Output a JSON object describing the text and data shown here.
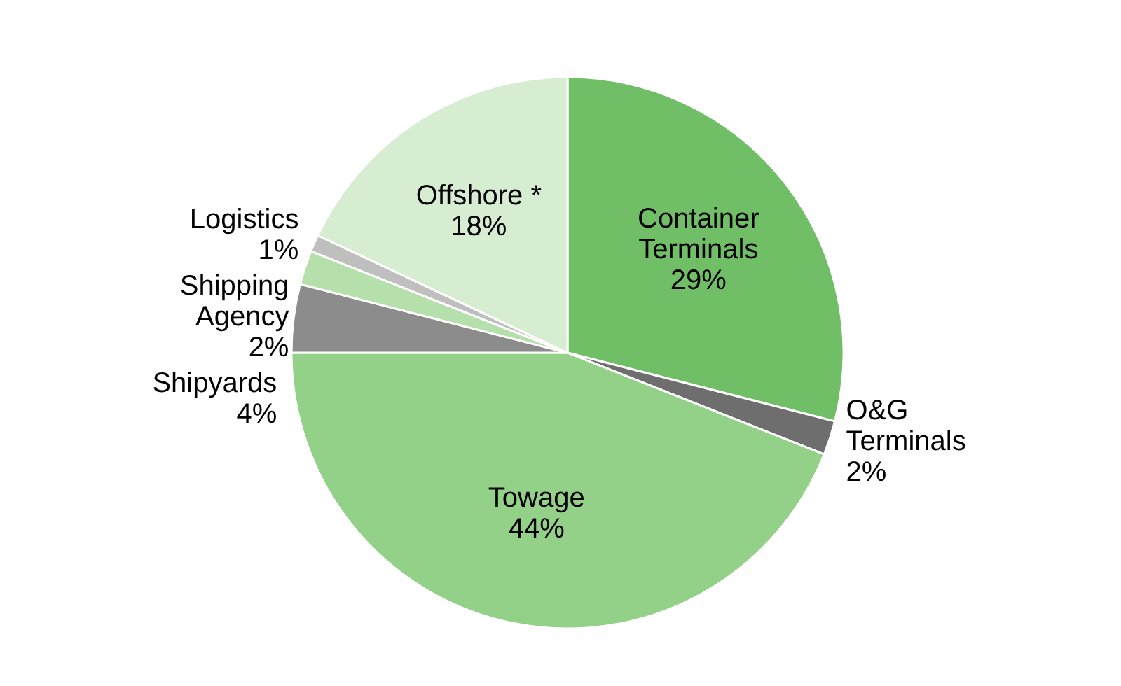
{
  "chart_data": {
    "type": "pie",
    "categories": [
      "Container\nTerminals",
      "O&G\nTerminals",
      "Towage",
      "Shipyards",
      "Shipping\nAgency",
      "Logistics",
      "Offshore *"
    ],
    "values": [
      29,
      2,
      44,
      4,
      2,
      1,
      18
    ],
    "colors": [
      "#70bf66",
      "#6e6e6e",
      "#93d088",
      "#8c8c8c",
      "#b5e0ab",
      "#bfbfbf",
      "#d6edd1"
    ],
    "value_labels": [
      "29%",
      "2%",
      "44%",
      "4%",
      "2%",
      "1%",
      "18%"
    ]
  }
}
